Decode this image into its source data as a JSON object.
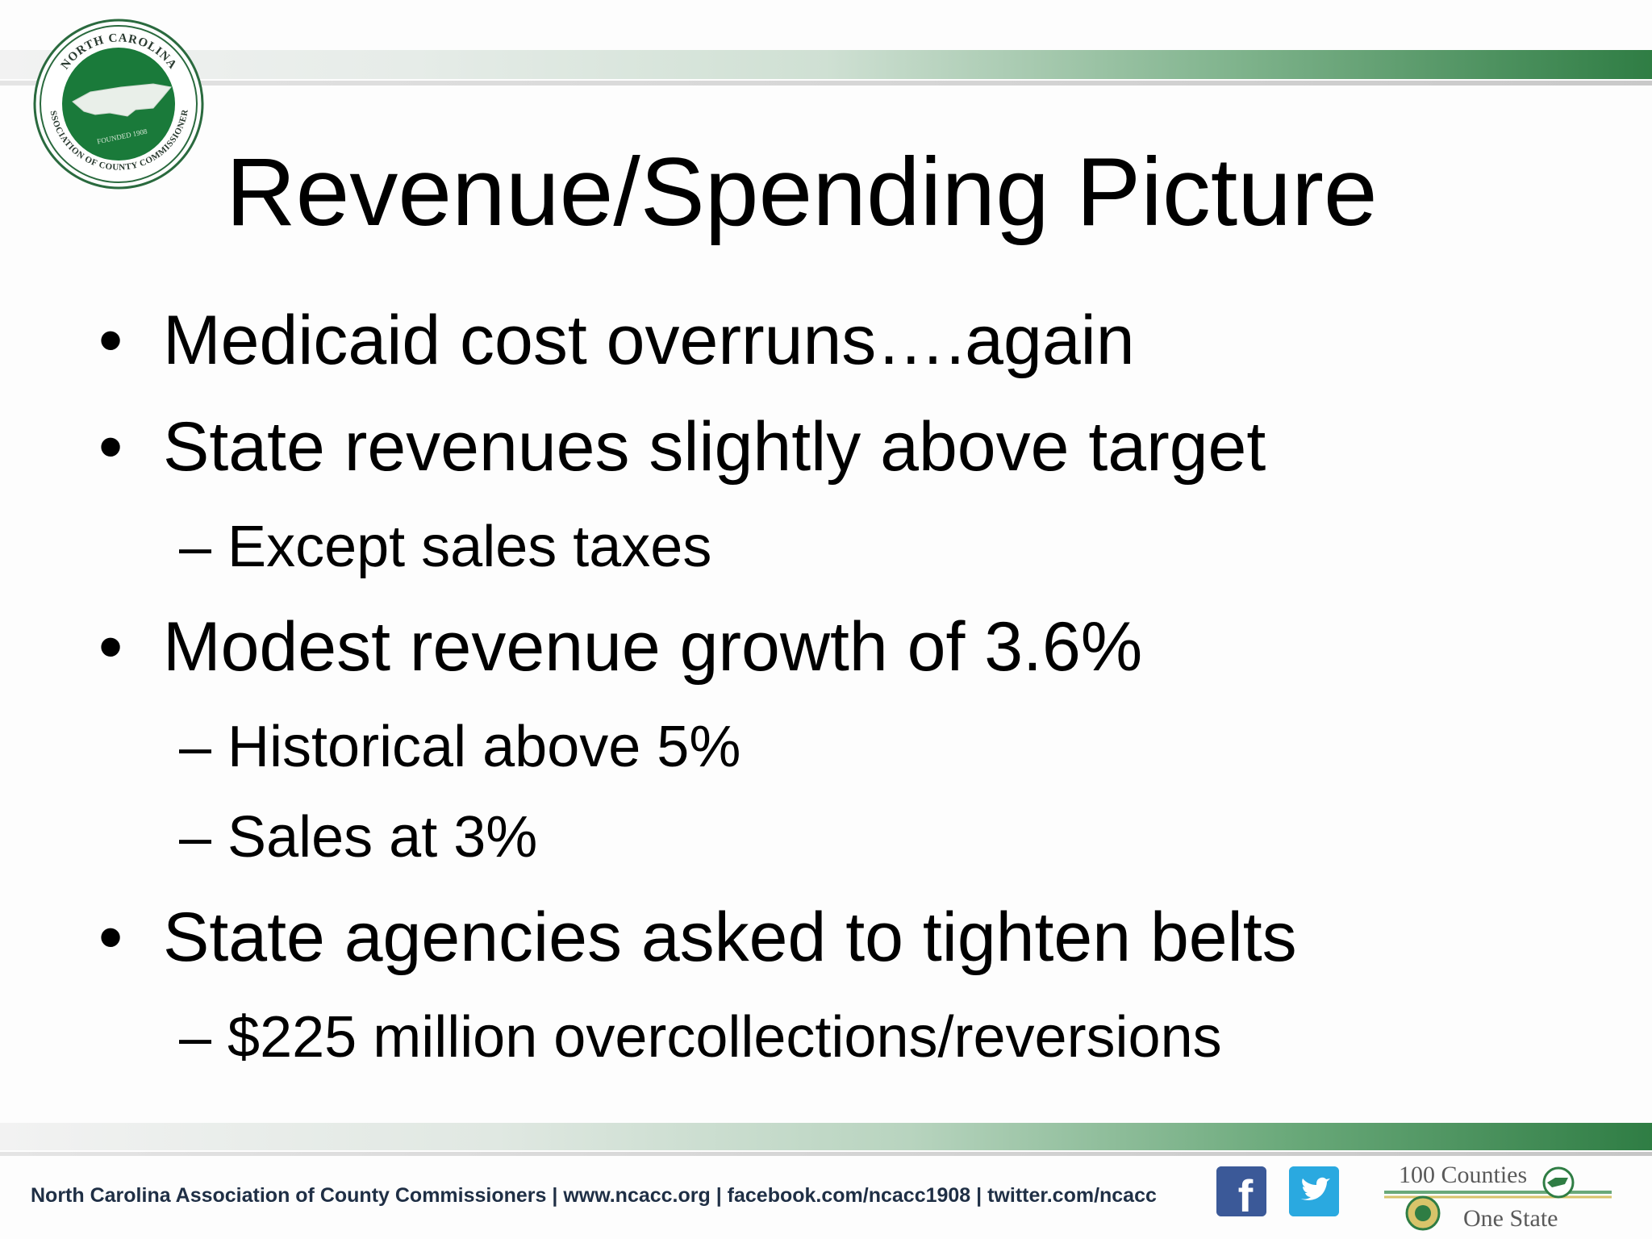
{
  "header": {
    "seal": {
      "icon": "ncacc-seal-icon",
      "text_top": "NORTH CAROLINA",
      "text_bottom": "ASSOCIATION OF COUNTY COMMISSIONERS",
      "founded": "FOUNDED 1908",
      "color": "#1a7a3a"
    }
  },
  "slide": {
    "title": "Revenue/Spending Picture",
    "bullets": [
      {
        "text": "Medicaid cost overruns….again",
        "subs": []
      },
      {
        "text": "State revenues slightly above target",
        "subs": [
          "– Except sales taxes"
        ]
      },
      {
        "text": "Modest revenue growth of 3.6%",
        "subs": [
          "– Historical above 5%",
          "– Sales at 3%"
        ]
      },
      {
        "text": "State agencies asked to tighten belts",
        "subs": [
          "– $225 million overcollections/reversions"
        ]
      }
    ],
    "bullet_char": "•"
  },
  "footer": {
    "text": "North Carolina Association of County Commissioners | www.ncacc.org | facebook.com/ncacc1908 | twitter.com/ncacc",
    "facebook_icon": "facebook-icon",
    "facebook_glyph": "f",
    "twitter_icon": "twitter-icon",
    "badge_top": "100 Counties",
    "badge_bottom": "One State",
    "accent": "#2f7d44"
  }
}
